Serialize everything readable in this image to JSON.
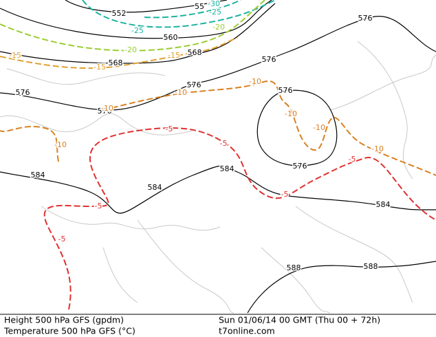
{
  "map": {
    "labels": [
      "552",
      "55",
      "-30",
      "-25",
      "-25",
      "560",
      "-20",
      "-20",
      "568",
      "568",
      "-15",
      "-15",
      "-15",
      "576",
      "576",
      "576",
      "576",
      "576",
      "576",
      "576",
      "-10",
      "-10",
      "-10",
      "-10",
      "-10",
      "-10",
      "-10",
      "-5",
      "-5",
      "-5",
      "-5",
      "-5",
      "-5",
      "584",
      "584",
      "584",
      "584",
      "588",
      "588"
    ],
    "footer": {
      "line1_left": "Height 500 hPa GFS (gpdm)",
      "line2_left": "Temperature 500 hPa GFS (°C)",
      "line1_right": "Sun 01/06/14 00 GMT (Thu 00 + 72h)",
      "line2_right": "t7online.com"
    }
  }
}
